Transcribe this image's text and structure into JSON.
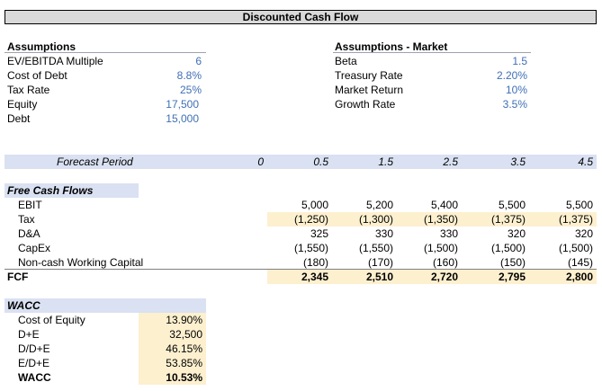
{
  "title": "Discounted Cash Flow",
  "assumptions": {
    "heading": "Assumptions",
    "rows": [
      {
        "label": "EV/EBITDA Multiple",
        "value": "6"
      },
      {
        "label": "Cost of Debt",
        "value": "8.8%"
      },
      {
        "label": "Tax Rate",
        "value": "25%"
      },
      {
        "label": "Equity",
        "value": "17,500"
      },
      {
        "label": "Debt",
        "value": "15,000"
      }
    ]
  },
  "market": {
    "heading": "Assumptions - Market",
    "rows": [
      {
        "label": "Beta",
        "value": "1.5"
      },
      {
        "label": "Treasury Rate",
        "value": "2.20%"
      },
      {
        "label": "Market Return",
        "value": "10%"
      },
      {
        "label": "Growth Rate",
        "value": "3.5%"
      }
    ]
  },
  "forecast": {
    "label": "Forecast Period",
    "periods": [
      "0",
      "0.5",
      "1.5",
      "2.5",
      "3.5",
      "4.5"
    ]
  },
  "fcf_table": {
    "heading": "Free Cash Flows",
    "rows": [
      {
        "label": "EBIT",
        "values": [
          "5,000",
          "5,200",
          "5,400",
          "5,500",
          "5,500"
        ]
      },
      {
        "label": "Tax",
        "values": [
          "(1,250)",
          "(1,300)",
          "(1,350)",
          "(1,375)",
          "(1,375)"
        ]
      },
      {
        "label": "D&A",
        "values": [
          "325",
          "330",
          "330",
          "320",
          "320"
        ]
      },
      {
        "label": "CapEx",
        "values": [
          "(1,550)",
          "(1,550)",
          "(1,500)",
          "(1,500)",
          "(1,500)"
        ]
      },
      {
        "label": "Non-cash Working Capital",
        "values": [
          "(180)",
          "(170)",
          "(160)",
          "(150)",
          "(145)"
        ]
      }
    ],
    "total": {
      "label": "FCF",
      "values": [
        "2,345",
        "2,510",
        "2,720",
        "2,795",
        "2,800"
      ]
    }
  },
  "wacc": {
    "heading": "WACC",
    "rows": [
      {
        "label": "Cost of Equity",
        "value": "13.90%"
      },
      {
        "label": "D+E",
        "value": "32,500"
      },
      {
        "label": "D/D+E",
        "value": "46.15%"
      },
      {
        "label": "E/D+E",
        "value": "53.85%"
      },
      {
        "label": "WACC",
        "value": "10.53%"
      }
    ]
  },
  "colors": {
    "band": "#d9e1f2",
    "highlight": "#fdf0cf",
    "input_blue": "#3f6fb5"
  }
}
